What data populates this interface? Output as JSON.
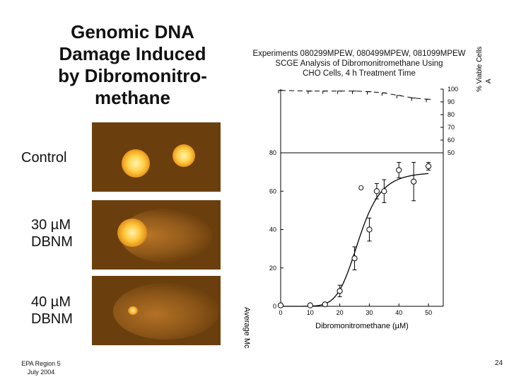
{
  "slide": {
    "title_lines": [
      "Genomic DNA",
      "Damage Induced",
      "by Dibromonitro-",
      "methane"
    ],
    "labels": {
      "control": "Control",
      "dbnm30_line1": "30 µM",
      "dbnm30_line2": "DBNM",
      "dbnm40_line1": "40 µM",
      "dbnm40_line2": "DBNM"
    },
    "footer": {
      "line1": "EPA Region 5",
      "line2": "July 2004"
    },
    "page_number": "24"
  },
  "images": {
    "control": "two compact bright comet heads (no tail)",
    "dbnm30": "comet head with faint tail to the right",
    "dbnm40": "small head with diffuse tail"
  },
  "colors": {
    "micro_bg": "#6b3f0d",
    "comet_core": "#fff3b0",
    "comet_glow": "#f0a020",
    "comet_tail": "#c07a2a"
  },
  "chart_data": {
    "type": "scatter",
    "title_lines": [
      "Experiments 080299MPEW, 080499MPEW, 081099MPEW",
      "SCGE Analysis of Dibromonitromethane Using",
      "CHO Cells, 4 h Treatment Time"
    ],
    "xlabel": "Dibromonitromethane (µM)",
    "ylabel_left": "Average Mc",
    "ylabel_right": "% Viable Cells",
    "right_axis_extra": "A",
    "xlim": [
      0,
      55
    ],
    "x_ticks": [
      "0",
      "10",
      "20",
      "30",
      "40",
      "50"
    ],
    "y_left_lim": [
      0,
      80
    ],
    "y_left_ticks": [
      "0",
      "20",
      "40",
      "60",
      "80"
    ],
    "y_right_lim": [
      50,
      100
    ],
    "y_right_ticks": [
      "50",
      "60",
      "70",
      "80",
      "90",
      "100"
    ],
    "series": [
      {
        "points": [
          {
            "x": 0,
            "y": 0.5,
            "err": 0.5
          },
          {
            "x": 10,
            "y": 0.5,
            "err": 0.5
          },
          {
            "x": 15,
            "y": 1.0,
            "err": 1.0
          },
          {
            "x": 20,
            "y": 8,
            "err": 3
          },
          {
            "x": 25,
            "y": 25,
            "err": 6
          },
          {
            "x": 30,
            "y": 40,
            "err": 6
          },
          {
            "x": 32.5,
            "y": 60,
            "err": 4
          },
          {
            "x": 35,
            "y": 60,
            "err": 6
          },
          {
            "x": 40,
            "y": 71,
            "err": 4
          },
          {
            "x": 45,
            "y": 65,
            "err": 10
          },
          {
            "x": 50,
            "y": 73,
            "err": 2
          }
        ]
      },
      {
        "points": [
          {
            "x": 0,
            "y": 99
          },
          {
            "x": 10,
            "y": 98.5
          },
          {
            "x": 15,
            "y": 98.5
          },
          {
            "x": 20,
            "y": 98.5
          },
          {
            "x": 25,
            "y": 98.5
          },
          {
            "x": 30,
            "y": 98
          },
          {
            "x": 35,
            "y": 97
          },
          {
            "x": 40,
            "y": 95
          },
          {
            "x": 45,
            "y": 93
          },
          {
            "x": 50,
            "y": 92
          }
        ]
      }
    ],
    "fit_curve": {
      "bottom": 0,
      "top": 70,
      "ec50": 26.5,
      "hill": 7
    },
    "open_marker_legend": "O"
  }
}
